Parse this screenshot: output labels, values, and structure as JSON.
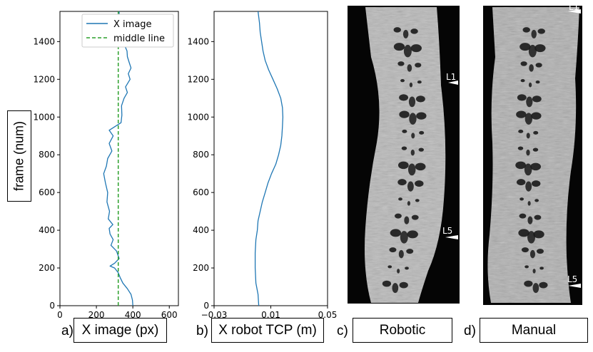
{
  "figure": {
    "ylabel": "frame (num)",
    "panels": [
      {
        "letter": "a)",
        "label": "X image (px)"
      },
      {
        "letter": "b)",
        "label": "X robot TCP (m)"
      },
      {
        "letter": "c)",
        "label": "Robotic"
      },
      {
        "letter": "d)",
        "label": "Manual"
      }
    ],
    "image_annotations": {
      "robotic": [
        "L1",
        "L5"
      ],
      "manual": [
        "L1",
        "L5"
      ]
    }
  },
  "chart_data": [
    {
      "type": "line",
      "panel": "a",
      "xlabel": "X image (px)",
      "ylabel": "frame (num)",
      "xlim": [
        0,
        650
      ],
      "ylim": [
        0,
        1560
      ],
      "xticks": [
        0,
        200,
        400,
        600
      ],
      "yticks": [
        0,
        200,
        400,
        600,
        800,
        1000,
        1200,
        1400
      ],
      "legend_position": "top-right",
      "colors": {
        "x_image": "#1f77b4",
        "middle_line": "#2ca02c"
      },
      "series": [
        {
          "name": "X image",
          "points": [
            [
              400,
              0
            ],
            [
              398,
              30
            ],
            [
              390,
              60
            ],
            [
              370,
              90
            ],
            [
              345,
              120
            ],
            [
              330,
              150
            ],
            [
              320,
              175
            ],
            [
              300,
              200
            ],
            [
              275,
              210
            ],
            [
              300,
              225
            ],
            [
              325,
              250
            ],
            [
              310,
              290
            ],
            [
              280,
              320
            ],
            [
              292,
              350
            ],
            [
              275,
              380
            ],
            [
              270,
              410
            ],
            [
              290,
              430
            ],
            [
              265,
              460
            ],
            [
              272,
              500
            ],
            [
              258,
              550
            ],
            [
              262,
              600
            ],
            [
              250,
              650
            ],
            [
              240,
              700
            ],
            [
              255,
              740
            ],
            [
              262,
              780
            ],
            [
              285,
              820
            ],
            [
              270,
              860
            ],
            [
              292,
              900
            ],
            [
              270,
              930
            ],
            [
              335,
              970
            ],
            [
              340,
              1010
            ],
            [
              338,
              1060
            ],
            [
              352,
              1100
            ],
            [
              370,
              1130
            ],
            [
              360,
              1160
            ],
            [
              385,
              1200
            ],
            [
              375,
              1230
            ],
            [
              390,
              1260
            ],
            [
              380,
              1290
            ],
            [
              370,
              1320
            ],
            [
              368,
              1350
            ],
            [
              355,
              1380
            ],
            [
              325,
              1420
            ],
            [
              335,
              1460
            ],
            [
              325,
              1500
            ],
            [
              325,
              1560
            ]
          ]
        },
        {
          "name": "middle line",
          "style": "dashed",
          "points": [
            [
              320,
              0
            ],
            [
              320,
              1560
            ]
          ]
        }
      ]
    },
    {
      "type": "line",
      "panel": "b",
      "xlabel": "X robot TCP (m)",
      "xlim": [
        -0.03,
        0.05
      ],
      "ylim": [
        0,
        1560
      ],
      "xticks": [
        -0.03,
        0.01,
        0.05
      ],
      "xtick_labels": [
        "−0.03",
        "0.01",
        "0.05"
      ],
      "yticks": [
        0,
        200,
        400,
        600,
        800,
        1000,
        1200,
        1400
      ],
      "colors": {
        "tcp": "#1f77b4"
      },
      "series": [
        {
          "points": [
            [
              0.0015,
              0
            ],
            [
              0.001,
              60
            ],
            [
              -0.0005,
              120
            ],
            [
              -0.001,
              200
            ],
            [
              -0.001,
              280
            ],
            [
              -0.0005,
              350
            ],
            [
              0.0005,
              400
            ],
            [
              0.001,
              450
            ],
            [
              0.0025,
              500
            ],
            [
              0.004,
              550
            ],
            [
              0.006,
              600
            ],
            [
              0.008,
              650
            ],
            [
              0.0105,
              700
            ],
            [
              0.0135,
              750
            ],
            [
              0.0155,
              800
            ],
            [
              0.017,
              850
            ],
            [
              0.0178,
              900
            ],
            [
              0.0182,
              950
            ],
            [
              0.0185,
              1000
            ],
            [
              0.0182,
              1050
            ],
            [
              0.017,
              1100
            ],
            [
              0.0145,
              1150
            ],
            [
              0.0115,
              1200
            ],
            [
              0.0085,
              1250
            ],
            [
              0.006,
              1300
            ],
            [
              0.0045,
              1350
            ],
            [
              0.0035,
              1400
            ],
            [
              0.0025,
              1450
            ],
            [
              0.002,
              1500
            ],
            [
              0.001,
              1560
            ]
          ]
        }
      ]
    }
  ]
}
